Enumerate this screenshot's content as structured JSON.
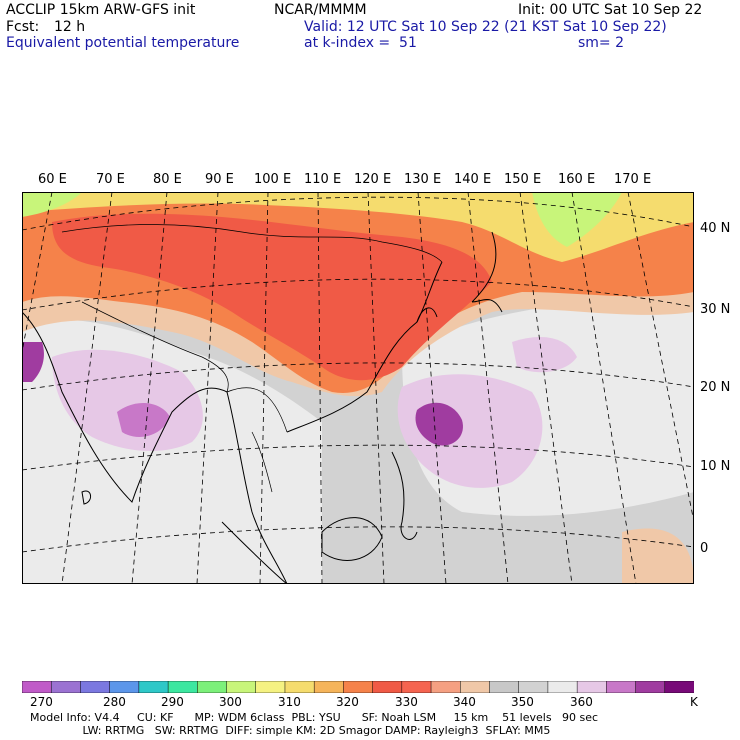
{
  "header": {
    "model": "ACCLIP 15km ARW-GFS init",
    "org": "NCAR/MMMM",
    "init": "Init: 00 UTC Sat 10 Sep 22",
    "fcst_label": "Fcst:",
    "fcst_value": "12 h",
    "valid": "Valid: 12 UTC Sat 10 Sep 22 (21 KST Sat 10 Sep 22)",
    "field": "Equivalent potential temperature",
    "level": "at k-index =  51",
    "smooth": "sm= 2"
  },
  "map": {
    "lon_labels": [
      "60 E",
      "70 E",
      "80 E",
      "90 E",
      "100 E",
      "110 E",
      "120 E",
      "130 E",
      "140 E",
      "150 E",
      "160 E",
      "170 E"
    ],
    "lat_labels": [
      "40 N",
      "30 N",
      "20 N",
      "10 N",
      "0"
    ]
  },
  "colorbar": {
    "colors": [
      "#c05ac8",
      "#9b72d2",
      "#7b78e0",
      "#5c96ea",
      "#2ec8c8",
      "#3ce7a0",
      "#7cf07a",
      "#c8f57a",
      "#f5f282",
      "#f5dc6e",
      "#f5b45a",
      "#f5824a",
      "#f05a46",
      "#f56450",
      "#f5a082",
      "#f0c8a8",
      "#c8c8c8",
      "#d2d2d2",
      "#ebebeb",
      "#e6c8e6",
      "#c878c8",
      "#a03ca0",
      "#780a78"
    ],
    "tick_labels": [
      "270",
      "280",
      "290",
      "300",
      "310",
      "320",
      "330",
      "340",
      "350",
      "360"
    ],
    "unit": "K"
  },
  "footer": {
    "line1": "Model Info: V4.4     CU: KF      MP: WDM 6class  PBL: YSU      SF: Noah LSM     15 km    51 levels   90 sec",
    "line2": "               LW: RRTMG   SW: RRTMG  DIFF: simple KM: 2D Smagor DAMP: Rayleigh3  SFLAY: MM5"
  }
}
